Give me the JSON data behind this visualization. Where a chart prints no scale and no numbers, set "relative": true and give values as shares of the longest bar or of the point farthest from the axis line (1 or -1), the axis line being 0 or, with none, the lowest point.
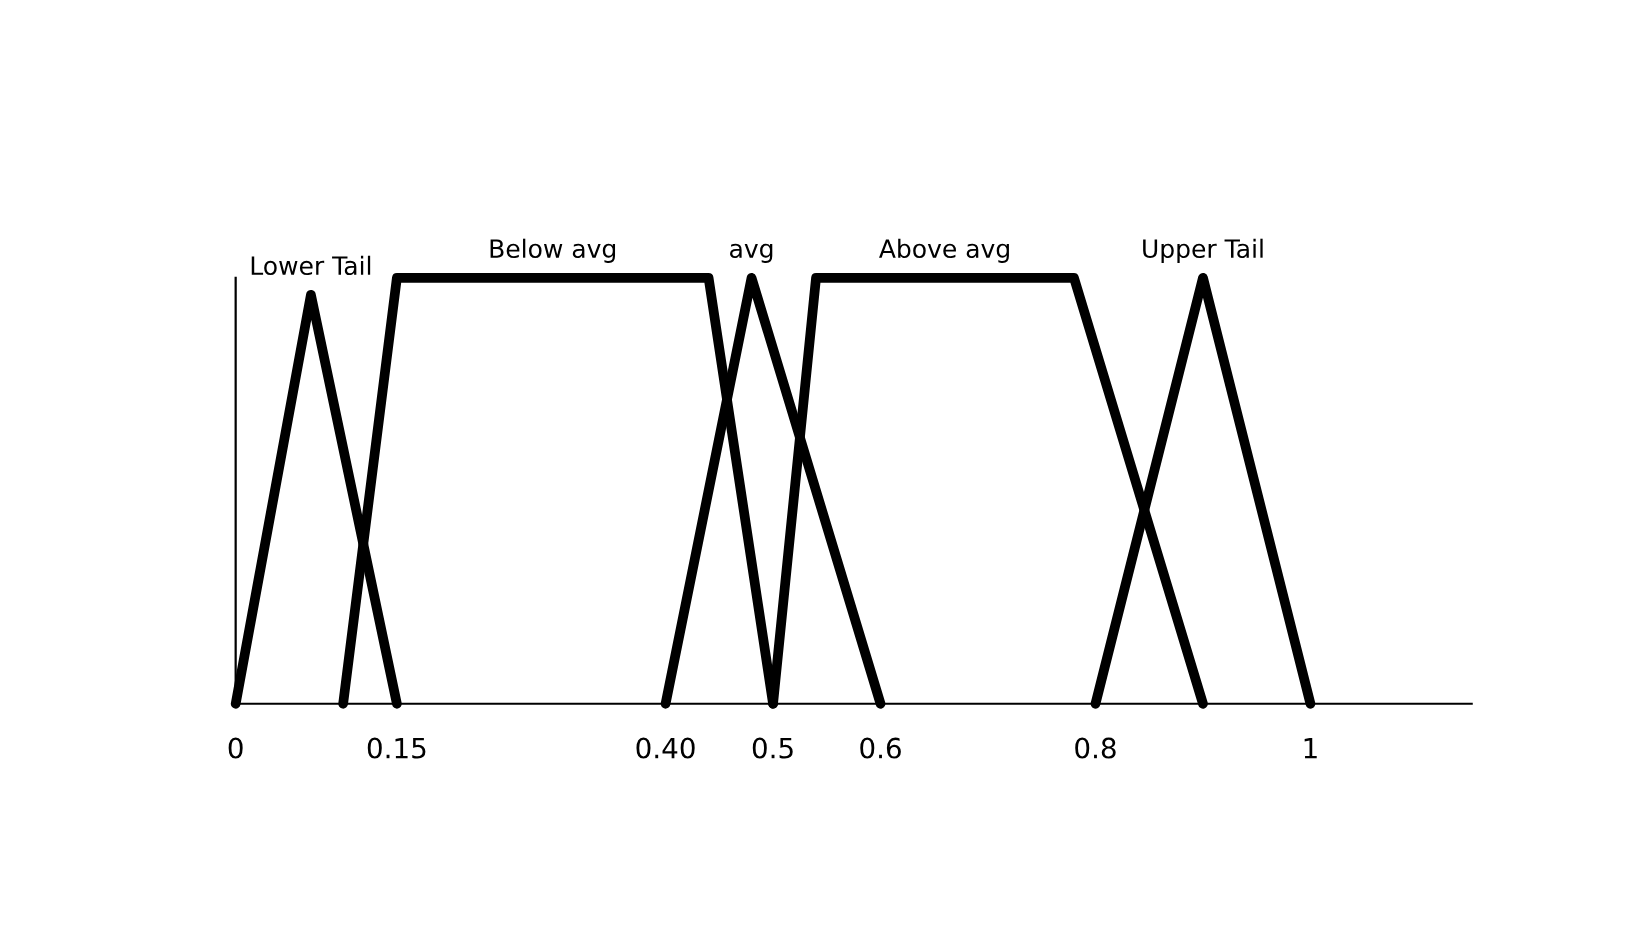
{
  "chart_data": {
    "type": "line",
    "relative": true,
    "xlim": [
      0,
      1.15
    ],
    "xticks": [
      0,
      0.15,
      {
        "value": 0.4,
        "label": "0.40"
      },
      0.5,
      0.6,
      0.8,
      1
    ],
    "grid": false,
    "legend": false,
    "marker": "none",
    "line_style": "solid",
    "tick_labels": "x",
    "series": [
      {
        "name": "Lower Tail",
        "color": "#000000",
        "x": [
          0,
          0.07,
          0.15
        ],
        "values": [
          0,
          0.96,
          0
        ]
      },
      {
        "name": "Below avg",
        "color": "#000000",
        "x": [
          0.1,
          0.15,
          0.44,
          0.5
        ],
        "values": [
          0,
          1,
          1,
          0
        ]
      },
      {
        "name": "avg",
        "color": "#000000",
        "x": [
          0.4,
          0.48,
          0.6
        ],
        "values": [
          0,
          1,
          0
        ]
      },
      {
        "name": "Above avg",
        "color": "#000000",
        "x": [
          0.5,
          0.54,
          0.78,
          0.9
        ],
        "values": [
          0,
          1,
          1,
          0
        ]
      },
      {
        "name": "Upper Tail",
        "color": "#000000",
        "x": [
          0.8,
          0.9,
          1.0
        ],
        "values": [
          0,
          1,
          0
        ]
      }
    ]
  }
}
